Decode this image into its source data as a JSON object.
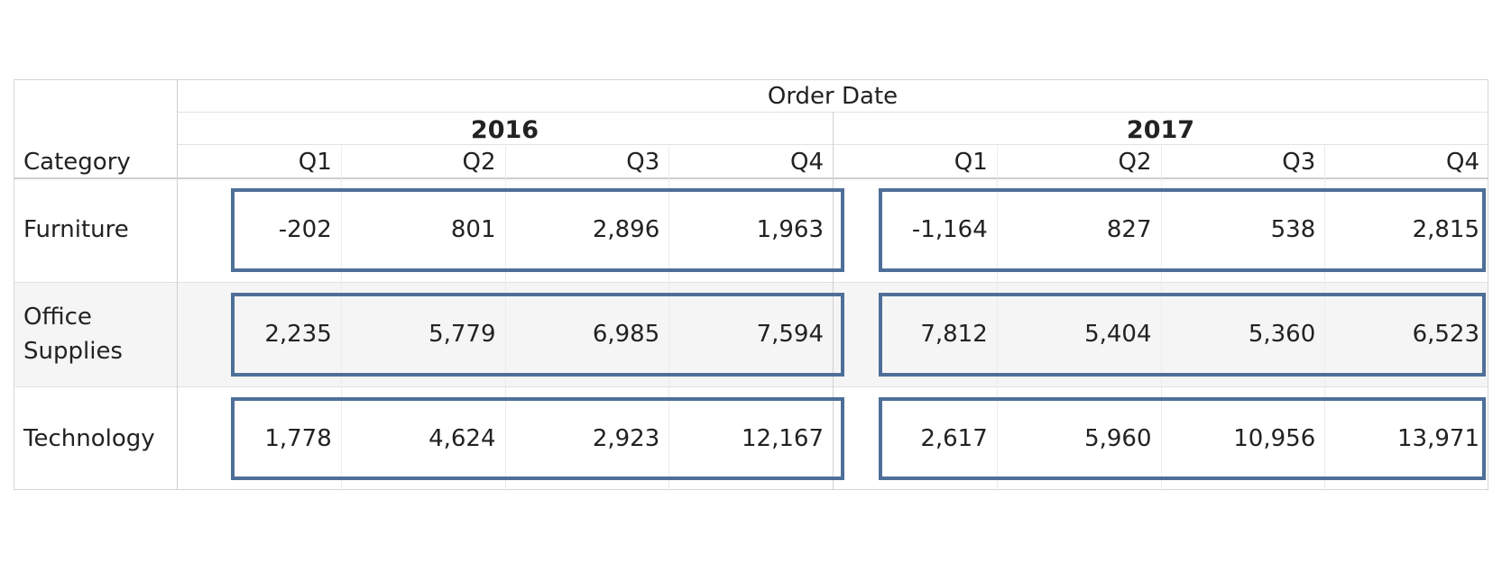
{
  "chart_data": {
    "type": "table",
    "column_header": "Order Date",
    "row_header": "Category",
    "years": [
      "2016",
      "2017"
    ],
    "quarters": [
      "Q1",
      "Q2",
      "Q3",
      "Q4"
    ],
    "rows": [
      {
        "category": "Furniture",
        "values": [
          "-202",
          "801",
          "2,896",
          "1,963",
          "-1,164",
          "827",
          "538",
          "2,815"
        ]
      },
      {
        "category": "Office Supplies",
        "values": [
          "2,235",
          "5,779",
          "6,985",
          "7,594",
          "7,812",
          "5,404",
          "5,360",
          "6,523"
        ]
      },
      {
        "category": "Technology",
        "values": [
          "1,778",
          "4,624",
          "2,923",
          "12,167",
          "2,617",
          "5,960",
          "10,956",
          "13,971"
        ]
      }
    ],
    "highlight_color": "#4e6f99",
    "band_color": "#f5f5f5"
  }
}
